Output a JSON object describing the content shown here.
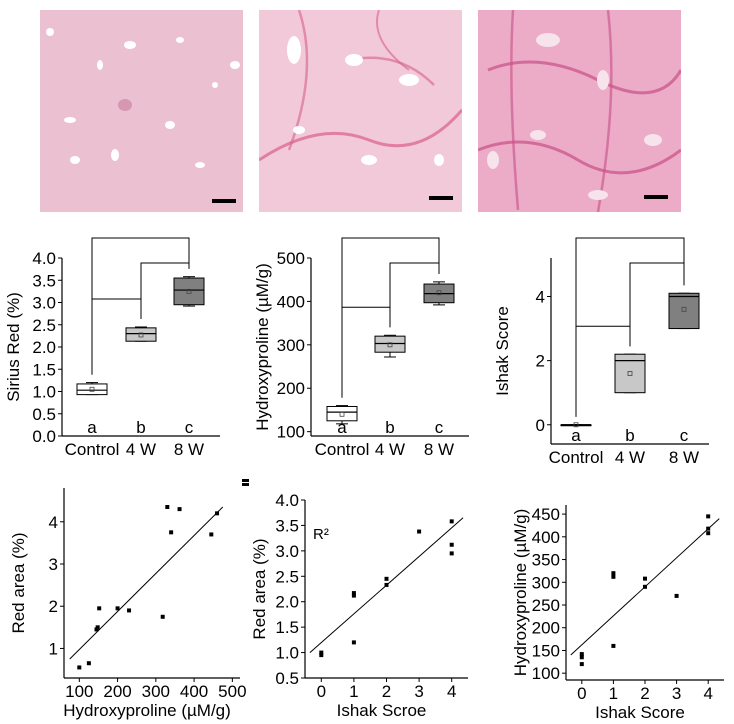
{
  "chart_data": [
    {
      "type": "box",
      "categories": [
        "Control",
        "4 W",
        "8 W"
      ],
      "ylabel": "Sirius Red (%)",
      "ylim": [
        0,
        4.0
      ],
      "yticks": [
        "0.0",
        "0.5",
        "1.0",
        "1.5",
        "2.0",
        "2.5",
        "3.0",
        "3.5",
        "4.0"
      ],
      "group_letters": [
        "a",
        "b",
        "c"
      ],
      "boxes": [
        {
          "min": 0.93,
          "q1": 0.93,
          "median": 1.03,
          "q3": 1.17,
          "max": 1.2,
          "mean": 1.05,
          "fill": "#ffffff"
        },
        {
          "min": 2.13,
          "q1": 2.13,
          "median": 2.3,
          "q3": 2.43,
          "max": 2.45,
          "mean": 2.27,
          "fill": "#c8c8c8"
        },
        {
          "min": 2.92,
          "q1": 2.95,
          "median": 3.28,
          "q3": 3.55,
          "max": 3.58,
          "mean": 3.25,
          "fill": "#808080"
        }
      ]
    },
    {
      "type": "box",
      "categories": [
        "Control",
        "4 W",
        "8 W"
      ],
      "ylabel": "Hydroxyproline (µM/g)",
      "ylim": [
        90,
        500
      ],
      "yticks": [
        "100",
        "200",
        "300",
        "400",
        "500"
      ],
      "group_letters": [
        "a",
        "b",
        "c"
      ],
      "boxes": [
        {
          "min": 118,
          "q1": 125,
          "median": 145,
          "q3": 158,
          "max": 160,
          "mean": 140,
          "fill": "#ffffff"
        },
        {
          "min": 272,
          "q1": 283,
          "median": 303,
          "q3": 320,
          "max": 322,
          "mean": 300,
          "fill": "#c8c8c8"
        },
        {
          "min": 392,
          "q1": 397,
          "median": 418,
          "q3": 440,
          "max": 445,
          "mean": 420,
          "fill": "#808080"
        }
      ]
    },
    {
      "type": "box",
      "categories": [
        "Control",
        "4 W",
        "8 W"
      ],
      "ylabel": "Ishak Score",
      "ylim": [
        -0.6,
        5.2
      ],
      "yticks": [
        "0",
        "2",
        "4"
      ],
      "group_letters": [
        "a",
        "b",
        "c"
      ],
      "boxes": [
        {
          "min": 0,
          "q1": 0,
          "median": 0,
          "q3": 0,
          "max": 0,
          "mean": 0,
          "fill": "#ffffff"
        },
        {
          "min": 1,
          "q1": 1,
          "median": 2,
          "q3": 2.2,
          "max": 2.2,
          "mean": 1.6,
          "fill": "#c8c8c8"
        },
        {
          "min": 3,
          "q1": 3,
          "median": 4,
          "q3": 4.1,
          "max": 4.1,
          "mean": 3.6,
          "fill": "#808080"
        }
      ]
    },
    {
      "type": "scatter",
      "xlabel": "Hydroxyproline (µM/g)",
      "ylabel": "Red area (%)",
      "xlim": [
        60,
        520
      ],
      "ylim": [
        0.3,
        4.8
      ],
      "xticks": [
        "100",
        "200",
        "300",
        "400",
        "500"
      ],
      "yticks": [
        "1",
        "2",
        "3",
        "4"
      ],
      "points": [
        [
          100,
          0.55
        ],
        [
          125,
          0.65
        ],
        [
          145,
          1.45
        ],
        [
          148,
          1.5
        ],
        [
          152,
          1.95
        ],
        [
          200,
          1.95
        ],
        [
          230,
          1.9
        ],
        [
          318,
          1.75
        ],
        [
          330,
          4.35
        ],
        [
          340,
          3.75
        ],
        [
          362,
          4.3
        ],
        [
          445,
          3.7
        ],
        [
          460,
          4.2
        ]
      ],
      "fit": [
        [
          75,
          0.75
        ],
        [
          475,
          4.35
        ]
      ]
    },
    {
      "type": "scatter",
      "xlabel": "Ishak Scroe",
      "ylabel": "Red area (%)",
      "annotation": "R²",
      "xlim": [
        -0.5,
        4.5
      ],
      "ylim": [
        0.5,
        4.0
      ],
      "xticks": [
        "0",
        "1",
        "2",
        "3",
        "4"
      ],
      "yticks": [
        "0.5",
        "1.0",
        "1.5",
        "2.0",
        "2.5",
        "3.0",
        "3.5",
        "4.0"
      ],
      "points": [
        [
          0,
          0.95
        ],
        [
          0,
          1.0
        ],
        [
          1,
          1.2
        ],
        [
          1,
          2.12
        ],
        [
          1,
          2.17
        ],
        [
          2,
          2.33
        ],
        [
          2,
          2.45
        ],
        [
          3,
          3.38
        ],
        [
          4,
          2.95
        ],
        [
          4,
          3.12
        ],
        [
          4,
          3.58
        ]
      ],
      "fit": [
        [
          -0.35,
          1.0
        ],
        [
          4.35,
          3.65
        ]
      ]
    },
    {
      "type": "scatter",
      "xlabel": "Ishak Score",
      "ylabel": "Hydroxyproline (µM/g)",
      "xlim": [
        -0.5,
        4.5
      ],
      "ylim": [
        85,
        470
      ],
      "xticks": [
        "0",
        "1",
        "2",
        "3",
        "4"
      ],
      "yticks": [
        "100",
        "150",
        "200",
        "250",
        "300",
        "350",
        "400",
        "450"
      ],
      "points": [
        [
          0,
          120
        ],
        [
          0,
          135
        ],
        [
          0,
          142
        ],
        [
          1,
          160
        ],
        [
          1,
          312
        ],
        [
          1,
          320
        ],
        [
          2,
          290
        ],
        [
          2,
          308
        ],
        [
          3,
          270
        ],
        [
          4,
          408
        ],
        [
          4,
          418
        ],
        [
          4,
          445
        ]
      ],
      "fit": [
        [
          -0.35,
          140
        ],
        [
          4.35,
          440
        ]
      ]
    }
  ]
}
